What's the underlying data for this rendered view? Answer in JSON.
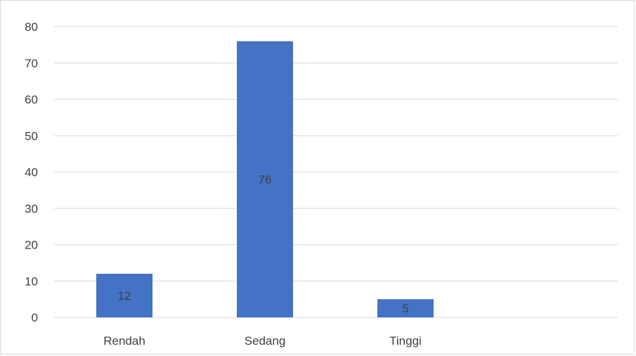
{
  "chart_data": {
    "type": "bar",
    "title": "",
    "xlabel": "",
    "ylabel": "",
    "categories": [
      "Rendah",
      "Sedang",
      "Tinggi"
    ],
    "values": [
      12,
      76,
      5
    ],
    "ylim": [
      0,
      80
    ],
    "yticks": [
      0,
      10,
      20,
      30,
      40,
      50,
      60,
      70,
      80
    ],
    "data_labels": [
      "12",
      "76",
      "5"
    ],
    "grid": true,
    "legend": "none",
    "bar_color": "#4472c4",
    "gridline_color": "#d9d9d9",
    "text_color": "#404040"
  }
}
